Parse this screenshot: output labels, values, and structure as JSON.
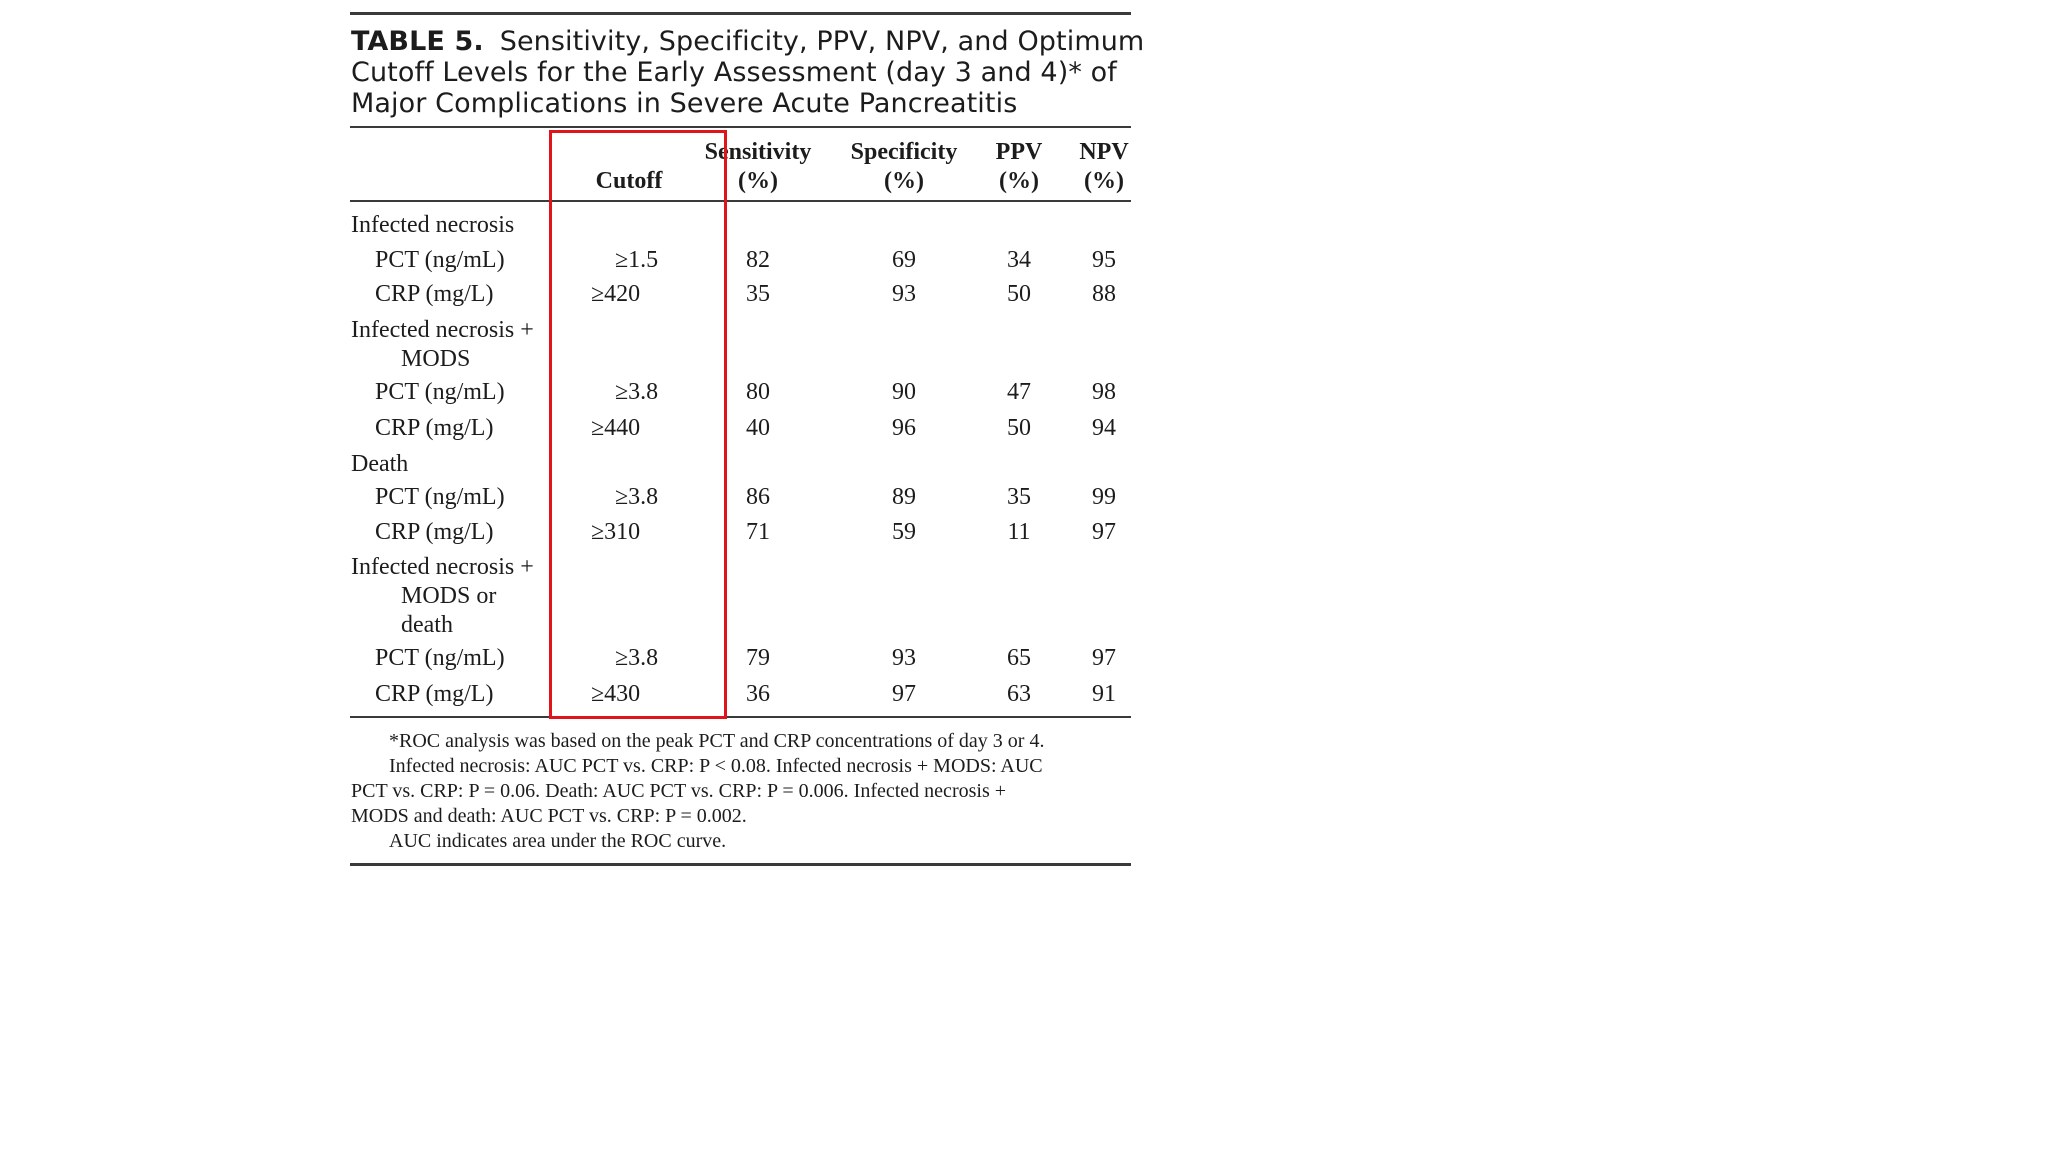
{
  "table": {
    "label": "TABLE 5.",
    "title_lines": [
      "Sensitivity, Specificity, PPV, NPV, and Optimum",
      "Cutoff Levels for the Early Assessment (day 3 and 4)* of",
      "Major Complications in Severe Acute Pancreatitis"
    ],
    "headers": {
      "cutoff": "Cutoff",
      "sensitivity": [
        "Sensitivity",
        "(%)"
      ],
      "specificity": [
        "Specificity",
        "(%)"
      ],
      "ppv": [
        "PPV",
        "(%)"
      ],
      "npv": [
        "NPV",
        "(%)"
      ]
    },
    "groups": [
      {
        "label_lines": [
          "Infected necrosis"
        ],
        "rows": [
          {
            "marker": "PCT (ng/mL)",
            "cutoff": "≥1.5",
            "sensitivity": "82",
            "specificity": "69",
            "ppv": "34",
            "npv": "95"
          },
          {
            "marker": "CRP (mg/L)",
            "cutoff": "≥420",
            "sensitivity": "35",
            "specificity": "93",
            "ppv": "50",
            "npv": "88"
          }
        ]
      },
      {
        "label_lines": [
          "Infected necrosis +",
          "MODS"
        ],
        "rows": [
          {
            "marker": "PCT (ng/mL)",
            "cutoff": "≥3.8",
            "sensitivity": "80",
            "specificity": "90",
            "ppv": "47",
            "npv": "98"
          },
          {
            "marker": "CRP (mg/L)",
            "cutoff": "≥440",
            "sensitivity": "40",
            "specificity": "96",
            "ppv": "50",
            "npv": "94"
          }
        ]
      },
      {
        "label_lines": [
          "Death"
        ],
        "rows": [
          {
            "marker": "PCT (ng/mL)",
            "cutoff": "≥3.8",
            "sensitivity": "86",
            "specificity": "89",
            "ppv": "35",
            "npv": "99"
          },
          {
            "marker": "CRP (mg/L)",
            "cutoff": "≥310",
            "sensitivity": "71",
            "specificity": "59",
            "ppv": "11",
            "npv": "97"
          }
        ]
      },
      {
        "label_lines": [
          "Infected necrosis +",
          "MODS or",
          "death"
        ],
        "rows": [
          {
            "marker": "PCT (ng/mL)",
            "cutoff": "≥3.8",
            "sensitivity": "79",
            "specificity": "93",
            "ppv": "65",
            "npv": "97"
          },
          {
            "marker": "CRP (mg/L)",
            "cutoff": "≥430",
            "sensitivity": "36",
            "specificity": "97",
            "ppv": "63",
            "npv": "91"
          }
        ]
      }
    ],
    "footnotes": [
      "*ROC analysis was based on the peak PCT and CRP concentrations of day 3 or 4.",
      "Infected necrosis: AUC PCT vs. CRP: P < 0.08. Infected necrosis + MODS: AUC",
      "PCT vs. CRP: P = 0.06. Death: AUC PCT vs. CRP: P = 0.006. Infected necrosis +",
      "MODS and death: AUC PCT vs. CRP: P = 0.002.",
      "AUC indicates area under the ROC curve."
    ]
  },
  "highlight": {
    "target_column": "Cutoff",
    "color": "#e0141a"
  }
}
